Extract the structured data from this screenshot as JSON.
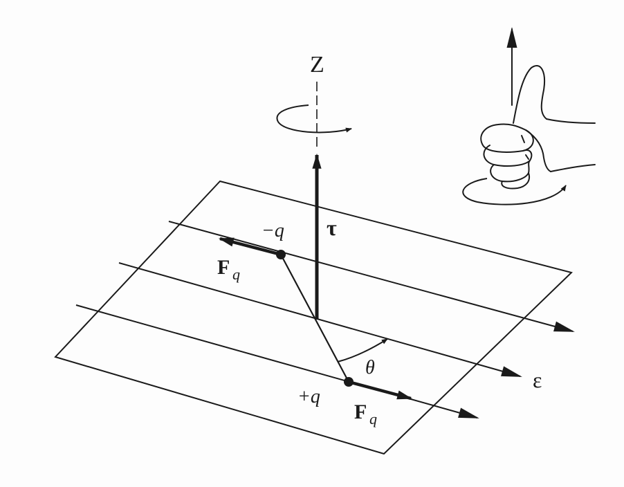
{
  "labels": {
    "axis": "Z",
    "torque": "τ",
    "neg_charge": "−q",
    "pos_charge": "+q",
    "force_symbol": "F",
    "force_sub": "q",
    "angle": "θ",
    "field": "ε"
  },
  "colors": {
    "ink": "#1a1a1a",
    "paper": "#fdfdfd"
  },
  "icons": [
    "right-hand-thumbs-up-icon",
    "rotation-arrow-icon"
  ]
}
